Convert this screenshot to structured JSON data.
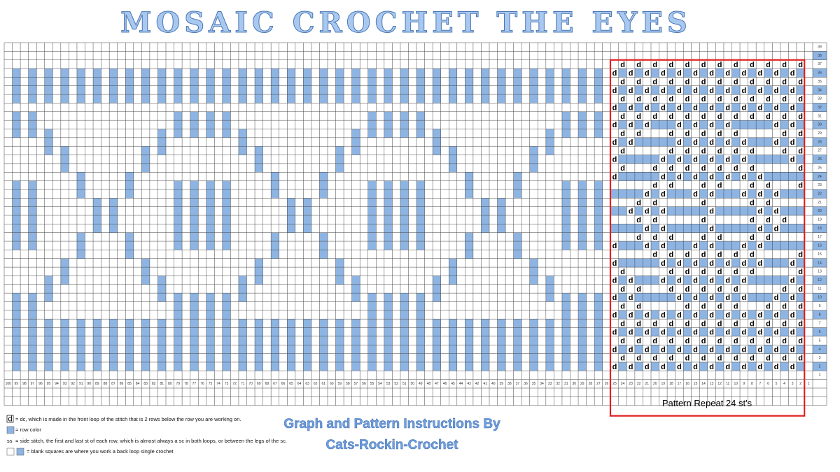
{
  "title": "MOSAIC CROCHET THE EYES",
  "grid": {
    "row_numbers": [
      1,
      2,
      3,
      4,
      5,
      6,
      7,
      8,
      9,
      10,
      11,
      12,
      13,
      14,
      15,
      16,
      17,
      18,
      19,
      20,
      21,
      22,
      23,
      24,
      25,
      26,
      27,
      28,
      29,
      30,
      31,
      32,
      33,
      34,
      35,
      36,
      37,
      38,
      39
    ],
    "column_numbers": [
      100,
      99,
      98,
      97,
      96,
      95,
      94,
      93,
      92,
      91,
      90,
      89,
      88,
      87,
      86,
      85,
      84,
      83,
      82,
      81,
      80,
      79,
      78,
      77,
      76,
      75,
      74,
      73,
      72,
      71,
      70,
      69,
      68,
      67,
      66,
      65,
      64,
      63,
      62,
      61,
      60,
      59,
      58,
      57,
      56,
      55,
      54,
      53,
      52,
      51,
      50,
      49,
      48,
      47,
      46,
      45,
      44,
      43,
      42,
      41,
      40,
      39,
      38,
      37,
      36,
      35,
      34,
      33,
      32,
      31,
      30,
      29,
      28,
      27,
      26,
      25,
      24,
      23,
      22,
      21,
      20,
      19,
      18,
      17,
      16,
      15,
      14,
      13,
      12,
      11,
      10,
      9,
      8,
      7,
      6,
      5,
      4,
      3,
      2,
      1
    ],
    "dc_symbol": "d"
  },
  "repeat": {
    "label": "Pattern Repeat 24 st's"
  },
  "legend": [
    {
      "symbol": "d",
      "text": "= dc, which is made in the front loop of the stitch that is 2 rows below the row you are working on."
    },
    {
      "text": "= row color"
    },
    {
      "symbol": "ss",
      "text": "= side stitch, the first and last st of each row, which is almost always a sc in both loops, or between the legs of the sc."
    },
    {
      "text": "= blank squares are where you work a back loop single crochet"
    }
  ],
  "credit": [
    "Graph and Pattern Instructions By",
    "Cats-Rockin-Crochet"
  ]
}
